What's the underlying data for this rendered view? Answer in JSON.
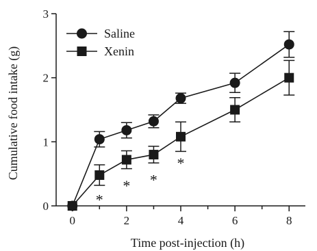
{
  "chart_data": {
    "type": "line",
    "title": "",
    "xlabel": "Time post-injection (h)",
    "ylabel": "Cumulative food intake (g)",
    "xlim": [
      -0.6,
      8.6
    ],
    "ylim": [
      0,
      3
    ],
    "xticks": [
      0,
      2,
      4,
      6,
      8
    ],
    "xticks_minor": [
      1,
      3,
      5,
      7
    ],
    "yticks": [
      0,
      1,
      2,
      3
    ],
    "legend_position": "top-left",
    "grid": false,
    "series": [
      {
        "name": "Saline",
        "marker": "circle",
        "x": [
          0,
          1,
          2,
          3,
          4,
          6,
          8
        ],
        "y": [
          0,
          1.04,
          1.18,
          1.32,
          1.68,
          1.92,
          2.52
        ],
        "err": [
          0,
          0.12,
          0.12,
          0.1,
          0.08,
          0.15,
          0.2
        ]
      },
      {
        "name": "Xenin",
        "marker": "square",
        "x": [
          0,
          1,
          2,
          3,
          4,
          6,
          8
        ],
        "y": [
          0,
          0.48,
          0.72,
          0.8,
          1.08,
          1.5,
          2.0
        ],
        "err": [
          0,
          0.16,
          0.14,
          0.13,
          0.23,
          0.19,
          0.27
        ]
      }
    ],
    "annotations": [
      {
        "text": "*",
        "x": 1,
        "y": 0.1
      },
      {
        "text": "*",
        "x": 2,
        "y": 0.32
      },
      {
        "text": "*",
        "x": 3,
        "y": 0.41
      },
      {
        "text": "*",
        "x": 4,
        "y": 0.67
      }
    ]
  }
}
